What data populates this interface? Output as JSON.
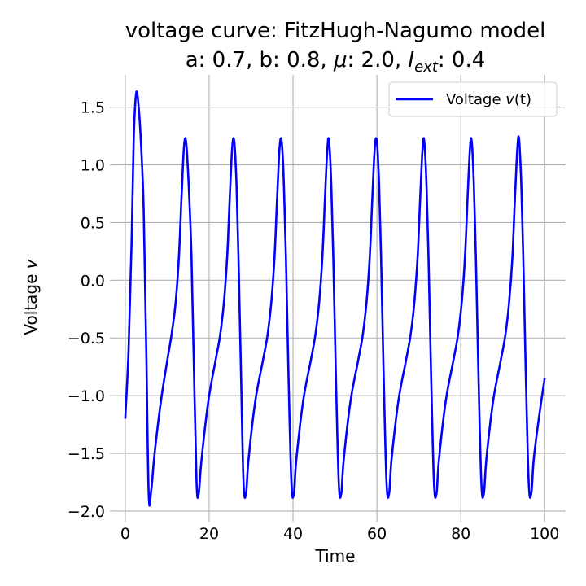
{
  "chart_data": {
    "type": "line",
    "title_line1": "voltage curve: FitzHugh-Nagumo model",
    "title_line2_parts": {
      "a": "a: 0.7, b: 0.8, ",
      "mu": "μ",
      "mid": ": 2.0, ",
      "I": "I",
      "sub": "ext",
      "end": ": 0.4"
    },
    "xlabel": "Time",
    "ylabel": "Voltage",
    "ylabel_var": "v",
    "xlim": [
      -2.5,
      105
    ],
    "ylim": [
      -2.05,
      1.78
    ],
    "xticks": [
      0,
      20,
      40,
      60,
      80,
      100
    ],
    "xtick_labels": [
      "0",
      "20",
      "40",
      "60",
      "80",
      "100"
    ],
    "yticks": [
      -2.0,
      -1.5,
      -1.0,
      -0.5,
      0.0,
      0.5,
      1.0,
      1.5
    ],
    "ytick_labels": [
      "−2.0",
      "−1.5",
      "−1.0",
      "−0.5",
      "0.0",
      "0.5",
      "1.0",
      "1.5"
    ],
    "grid": true,
    "legend_position": "top-right",
    "series": [
      {
        "name": "Voltage v(t)",
        "name_prefix": "Voltage ",
        "name_var": "v",
        "name_suffix": "(t)",
        "color": "#0000ff",
        "x": [
          0,
          0.8,
          1.5,
          2.0,
          2.6,
          3.2,
          3.8,
          4.4,
          5.0,
          5.6,
          6.2,
          7.0,
          8.5,
          10.0,
          11.0,
          12.0,
          12.8,
          13.4,
          14.0,
          14.5,
          15.1,
          15.8,
          16.4,
          17.0,
          17.5,
          18.2,
          19.8,
          21.5,
          22.6,
          23.5,
          24.3,
          24.9,
          25.5,
          26.0,
          26.5,
          27.0,
          27.6,
          28.2,
          28.8,
          29.4,
          31.0,
          32.8,
          33.9,
          34.8,
          35.6,
          36.2,
          36.8,
          37.3,
          37.8,
          38.3,
          38.9,
          39.6,
          40.2,
          40.8,
          42.4,
          44.2,
          45.3,
          46.2,
          47.0,
          47.6,
          48.2,
          48.6,
          49.1,
          49.6,
          50.2,
          50.9,
          51.5,
          52.1,
          53.7,
          55.5,
          56.6,
          57.5,
          58.3,
          58.9,
          59.5,
          60.0,
          60.5,
          61.0,
          61.6,
          62.3,
          62.9,
          63.5,
          65.1,
          66.9,
          68.0,
          68.9,
          69.7,
          70.3,
          70.9,
          71.3,
          71.8,
          72.3,
          72.9,
          73.6,
          74.2,
          74.8,
          76.4,
          78.2,
          79.3,
          80.2,
          81.0,
          81.6,
          82.2,
          82.6,
          83.1,
          83.6,
          84.2,
          84.9,
          85.5,
          86.1,
          87.7,
          89.5,
          90.6,
          91.5,
          92.3,
          92.9,
          93.5,
          93.9,
          94.4,
          94.9,
          95.5,
          96.2,
          96.8,
          97.4,
          98.6,
          100
        ],
        "y": [
          -1.2,
          -0.6,
          0.3,
          1.2,
          1.62,
          1.5,
          1.15,
          0.6,
          -0.6,
          -1.85,
          -1.82,
          -1.5,
          -1.05,
          -0.7,
          -0.48,
          -0.2,
          0.2,
          0.7,
          1.15,
          1.2,
          0.85,
          0.2,
          -0.8,
          -1.75,
          -1.85,
          -1.55,
          -1.05,
          -0.7,
          -0.48,
          -0.2,
          0.2,
          0.7,
          1.15,
          1.2,
          0.85,
          0.2,
          -0.8,
          -1.75,
          -1.85,
          -1.55,
          -1.05,
          -0.7,
          -0.48,
          -0.2,
          0.2,
          0.7,
          1.15,
          1.2,
          0.85,
          0.2,
          -0.8,
          -1.75,
          -1.85,
          -1.55,
          -1.05,
          -0.7,
          -0.48,
          -0.2,
          0.2,
          0.7,
          1.15,
          1.2,
          0.85,
          0.2,
          -0.8,
          -1.75,
          -1.85,
          -1.55,
          -1.05,
          -0.7,
          -0.48,
          -0.2,
          0.2,
          0.7,
          1.15,
          1.2,
          0.85,
          0.2,
          -0.8,
          -1.75,
          -1.85,
          -1.55,
          -1.05,
          -0.7,
          -0.48,
          -0.2,
          0.2,
          0.7,
          1.15,
          1.2,
          0.85,
          0.2,
          -0.8,
          -1.75,
          -1.85,
          -1.55,
          -1.05,
          -0.7,
          -0.48,
          -0.2,
          0.2,
          0.7,
          1.15,
          1.2,
          0.85,
          0.2,
          -0.8,
          -1.75,
          -1.85,
          -1.55,
          -1.05,
          -0.7,
          -0.48,
          -0.2,
          0.2,
          0.7,
          1.15,
          1.22,
          0.85,
          0.2,
          -0.8,
          -1.75,
          -1.85,
          -1.55,
          -1.2,
          -0.85
        ]
      }
    ]
  }
}
